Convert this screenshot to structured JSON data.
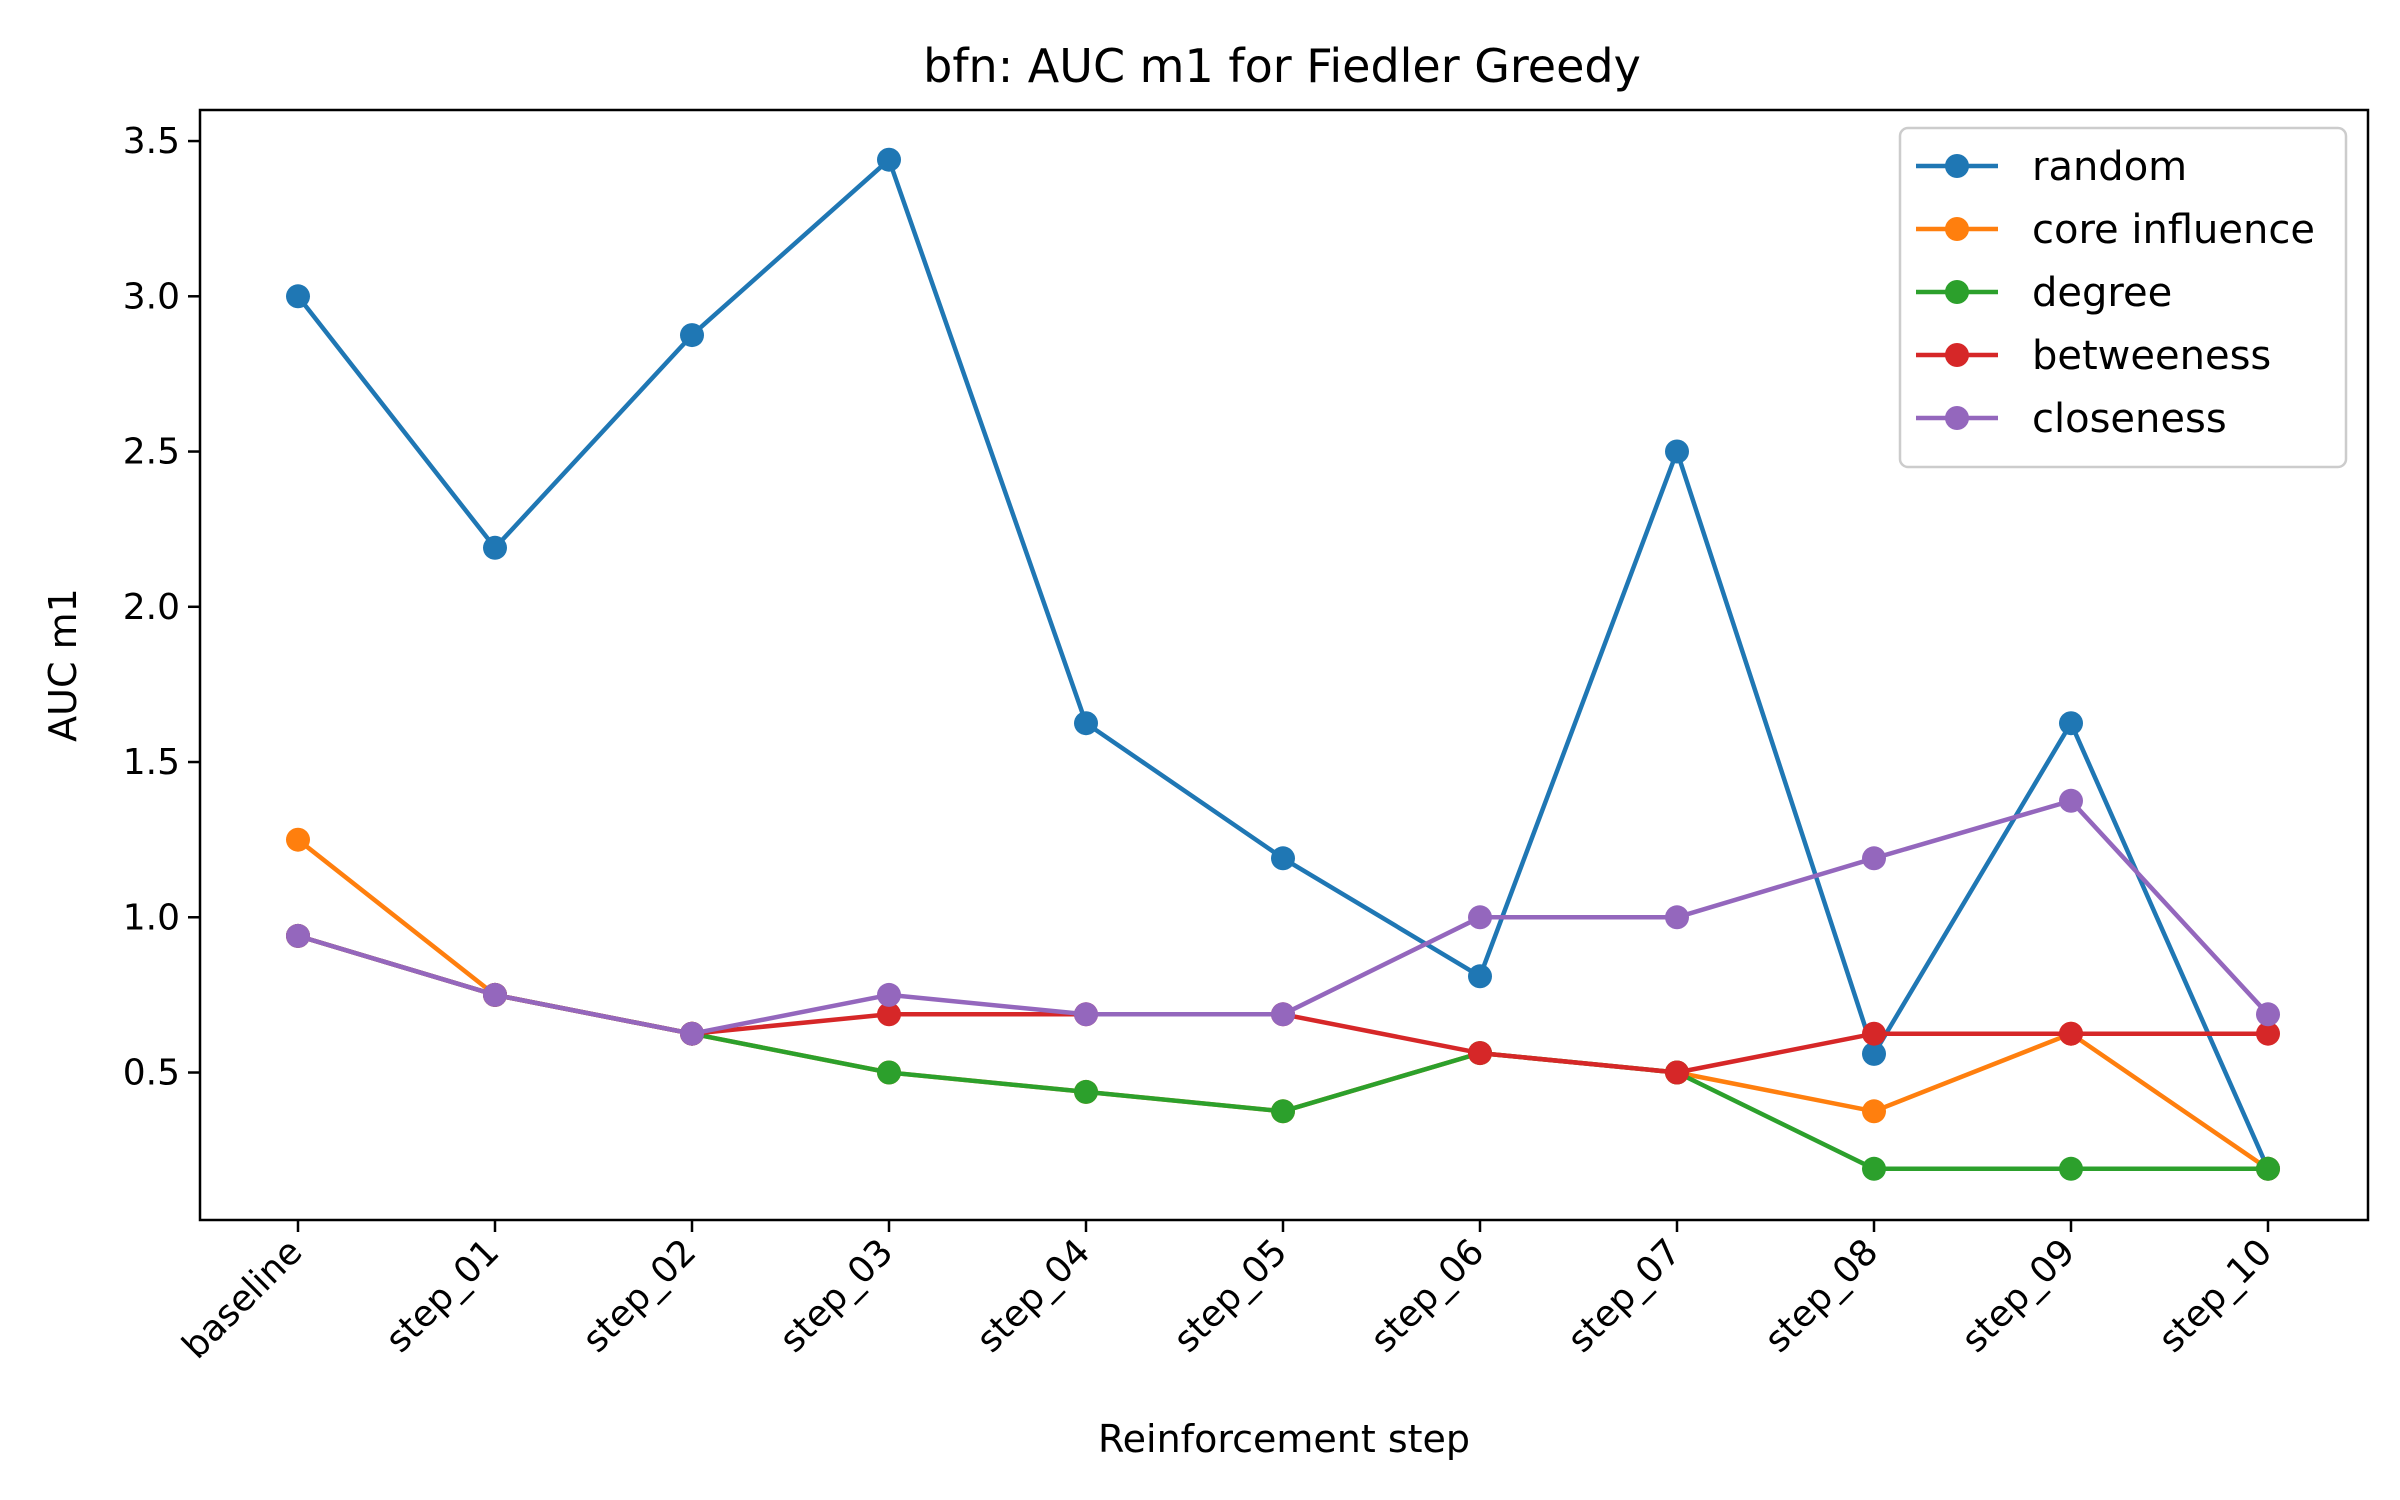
{
  "chart_data": {
    "type": "line",
    "title": "bfn: AUC m1 for Fiedler Greedy",
    "xlabel": "Reinforcement step",
    "ylabel": "AUC m1",
    "categories": [
      "baseline",
      "step_01",
      "step_02",
      "step_03",
      "step_04",
      "step_05",
      "step_06",
      "step_07",
      "step_08",
      "step_09",
      "step_10"
    ],
    "yticks": [
      0.5,
      1.0,
      1.5,
      2.0,
      2.5,
      3.0,
      3.5
    ],
    "ytick_labels": [
      "0.5",
      "1.0",
      "1.5",
      "2.0",
      "2.5",
      "3.0",
      "3.5"
    ],
    "ylim": [
      0.025,
      3.6
    ],
    "grid": false,
    "legend_position": "top-right",
    "series": [
      {
        "name": "random",
        "color": "#1f77b4",
        "values": [
          3.0,
          2.19,
          2.875,
          3.44,
          1.625,
          1.19,
          0.81,
          2.5,
          0.56,
          1.625,
          0.19
        ]
      },
      {
        "name": "core influence",
        "color": "#ff7f0e",
        "values": [
          1.25,
          0.75,
          0.625,
          0.5,
          0.4375,
          0.375,
          0.5625,
          0.5,
          0.375,
          0.625,
          0.19
        ]
      },
      {
        "name": "degree",
        "color": "#2ca02c",
        "values": [
          0.94,
          0.75,
          0.625,
          0.5,
          0.4375,
          0.375,
          0.5625,
          0.5,
          0.19,
          0.19,
          0.19
        ]
      },
      {
        "name": "betweeness",
        "color": "#d62728",
        "values": [
          0.94,
          0.75,
          0.625,
          0.6875,
          0.6875,
          0.6875,
          0.5625,
          0.5,
          0.625,
          0.625,
          0.625
        ]
      },
      {
        "name": "closeness",
        "color": "#9467bd",
        "values": [
          0.94,
          0.75,
          0.625,
          0.75,
          0.6875,
          0.6875,
          1.0,
          1.0,
          1.19,
          1.375,
          0.6875
        ]
      }
    ]
  }
}
